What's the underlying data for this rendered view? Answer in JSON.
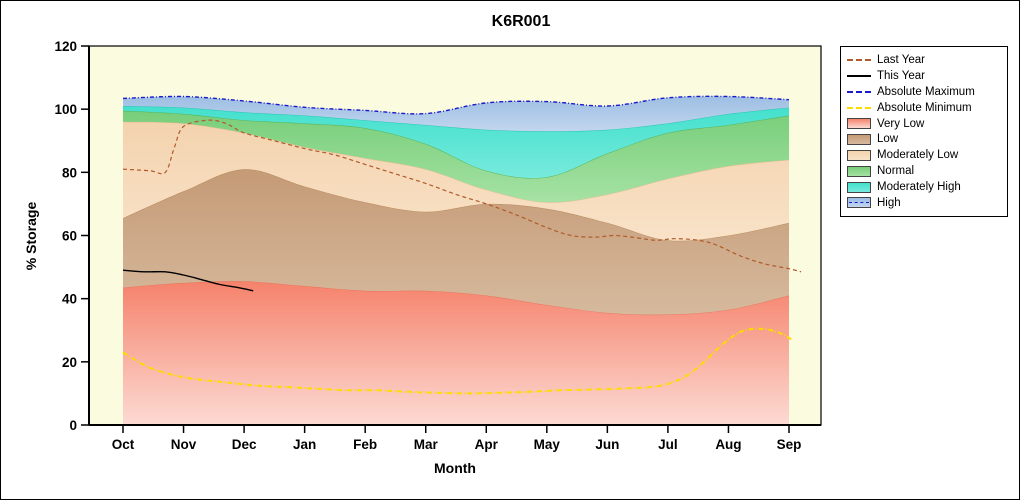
{
  "figure": {
    "title": "K6R001",
    "x_axis_label": "Month",
    "y_axis_label": "% Storage"
  },
  "chart_data": {
    "type": "area",
    "title": "K6R001",
    "xlabel": "Month",
    "ylabel": "% Storage",
    "ylim": [
      0,
      120
    ],
    "y_ticks": [
      0,
      20,
      40,
      60,
      80,
      100,
      120
    ],
    "months": [
      "Oct",
      "Nov",
      "Dec",
      "Jan",
      "Feb",
      "Mar",
      "Apr",
      "May",
      "Jun",
      "Jul",
      "Aug",
      "Sep"
    ],
    "plot_bg": "#FBFBE0",
    "grid": false,
    "legend_position": "right-outside",
    "bands": [
      {
        "name": "very-low",
        "label": "Very Low",
        "color_top": "#F5826B",
        "color_bottom": "#FCDAD3",
        "edge": "#E8705A",
        "top": [
          43.5,
          45,
          45.5,
          44,
          42.5,
          42.5,
          41,
          38,
          35.5,
          35,
          36.5,
          41
        ]
      },
      {
        "name": "low",
        "label": "Low",
        "color_top": "#C59A76",
        "color_bottom": "#D6BA9D",
        "edge": "#B68757",
        "top": [
          65.5,
          74,
          81,
          75.5,
          70.5,
          67.5,
          70,
          68.5,
          64,
          58.5,
          60,
          64
        ]
      },
      {
        "name": "moderately-low",
        "label": "Moderately Low",
        "color_top": "#F3D3AE",
        "color_bottom": "#F9E2C8",
        "edge": "#E3B98C",
        "top": [
          96,
          95.5,
          92.5,
          88,
          84.5,
          81,
          74.5,
          70.5,
          73,
          78,
          82,
          84
        ]
      },
      {
        "name": "normal",
        "label": "Normal",
        "color_top": "#77CE79",
        "color_bottom": "#A6E2A4",
        "edge": "#4DAE53",
        "top": [
          99.5,
          98.5,
          96.5,
          95.5,
          94,
          89,
          80.5,
          78.5,
          86,
          92.5,
          95,
          98
        ]
      },
      {
        "name": "moderately-high",
        "label": "Moderately High",
        "color_top": "#43E0CD",
        "color_bottom": "#77EADC",
        "edge": "#1FBFAE",
        "top": [
          101,
          100.5,
          99,
          98,
          96.5,
          95,
          93.5,
          93,
          93.5,
          95.5,
          98.5,
          100.5
        ]
      },
      {
        "name": "high",
        "label": "High",
        "color_top": "#9DBEE3",
        "color_bottom": "#C2D6EE",
        "edge": null,
        "legend_line": "#1A1ACD",
        "top": [
          103.4,
          104,
          102.6,
          100.6,
          99.6,
          98.6,
          102,
          102.4,
          101,
          103.6,
          104,
          103
        ]
      }
    ],
    "lines": [
      {
        "name": "last-year",
        "label": "Last Year",
        "color": "#B25A2B",
        "width": 1.2,
        "dash": "4 3",
        "x": [
          0,
          0.45,
          0.7,
          0.85,
          1.0,
          1.4,
          1.7,
          2,
          2.5,
          3,
          3.5,
          4,
          4.5,
          5,
          5.5,
          6,
          6.5,
          7,
          7.4,
          7.8,
          8.1,
          8.4,
          8.8,
          9.1,
          9.5,
          9.8,
          10.2,
          10.6,
          11,
          11.2
        ],
        "y": [
          81,
          80.5,
          80,
          88,
          94.5,
          96.5,
          95.5,
          92.5,
          90,
          87.5,
          85.5,
          82.5,
          79.5,
          76.5,
          73,
          70,
          66.5,
          62.5,
          60,
          59.5,
          60,
          59.5,
          58.5,
          59,
          58.5,
          57,
          53.5,
          51,
          49.5,
          48.5
        ]
      },
      {
        "name": "this-year",
        "label": "This Year",
        "color": "#000000",
        "width": 1.4,
        "dash": null,
        "x": [
          0,
          0.35,
          0.7,
          1.0,
          1.3,
          1.6,
          1.9,
          2.15
        ],
        "y": [
          49,
          48.5,
          48.5,
          47.5,
          46,
          44.5,
          43.5,
          42.5
        ]
      },
      {
        "name": "absolute-maximum",
        "label": "Absolute Maximum",
        "color": "#1A1ACD",
        "width": 1.4,
        "dash": "4 2 1 2",
        "x": [
          0,
          1,
          2,
          3,
          4,
          5,
          6,
          7,
          8,
          9,
          10,
          11
        ],
        "y": [
          103.4,
          104,
          102.6,
          100.6,
          99.6,
          98.6,
          102,
          102.4,
          101,
          103.6,
          104,
          103
        ]
      },
      {
        "name": "absolute-minimum",
        "label": "Absolute Minimum",
        "color": "#FFDB00",
        "width": 2,
        "dash": "5 2 1 2",
        "x": [
          0,
          0.4,
          0.8,
          1.2,
          1.7,
          2.2,
          2.7,
          3.2,
          3.7,
          4.2,
          4.7,
          5.2,
          5.7,
          6.2,
          6.7,
          7.2,
          7.7,
          8.2,
          8.7,
          9.0,
          9.3,
          9.6,
          9.9,
          10.2,
          10.5,
          10.8,
          11.05
        ],
        "y": [
          23,
          18.5,
          16,
          14.5,
          13.5,
          12.5,
          12,
          11.5,
          11,
          11,
          10.5,
          10.2,
          10,
          10.2,
          10.5,
          11,
          11.2,
          11.5,
          12,
          13,
          15.5,
          20,
          25.5,
          29.5,
          30.5,
          29.5,
          27
        ]
      }
    ]
  }
}
